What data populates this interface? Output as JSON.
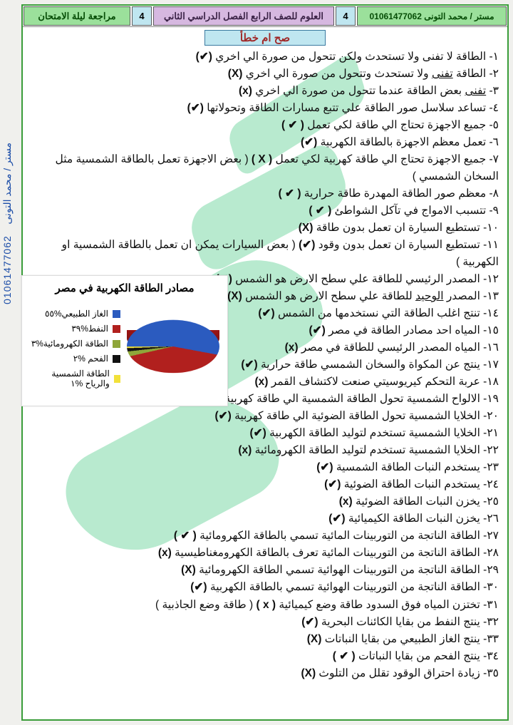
{
  "side": {
    "teacher": "مستر / محمد التونى",
    "phone": "01061477062"
  },
  "header": {
    "right_label": "مراجعة ليلة الامتحان",
    "num_right": "4",
    "center_label": "العلوم للصف الرابع الفصل الدراسي الثاني",
    "num_left": "4",
    "left_label": "مستر / محمد التونى   01061477062"
  },
  "tf_title": "صح ام خطأ",
  "items": [
    {
      "n": "١",
      "text": "- الطاقة لا تفنى ولا تستحدث ولكن تتحول من صورة الي اخري",
      "mark": "(✔)"
    },
    {
      "n": "٢",
      "pre": "- الطاقة ",
      "u": "تفنى",
      "post": " ولا تستحدث وتتحول من صورة الي اخري",
      "mark": "(X)"
    },
    {
      "n": "٣",
      "pre": "- ",
      "u": "تفنى",
      "post": " بعض الطاقة عندما تتحول من صورة الي اخري",
      "mark": "(x)"
    },
    {
      "n": "٤",
      "text": "- تساعد سلاسل صور الطاقة علي تتبع مسارات الطاقة وتحولاتها",
      "mark": "(✔)"
    },
    {
      "n": "٥",
      "text": "- جميع الاجهزة تحتاج الي طاقة لكي تعمل",
      "mark": "(  ✔  )"
    },
    {
      "n": "٦",
      "text": "- تعمل معظم الاجهزة بالطاقة الكهربية",
      "mark": "(✔)"
    },
    {
      "n": "٧",
      "text": "- جميع الاجهزة تحتاج الي طاقة كهربية لكي تعمل",
      "mark": "(  X  )",
      "note": "( بعض الاجهزة تعمل بالطاقة الشمسية مثل السخان الشمسي )"
    },
    {
      "n": "٨",
      "text": "- معظم صور الطاقة المهدرة طاقة حرارية",
      "mark": "(  ✔  )"
    },
    {
      "n": "٩",
      "text": "- تتسبب الامواج في تآكل الشواطئ",
      "mark": "(  ✔  )"
    },
    {
      "n": "١٠",
      "text": "- تستطيع السيارة ان تعمل بدون طاقة",
      "mark": "(X)"
    },
    {
      "n": "١١",
      "text": "- تستطيع السيارة ان تعمل بدون وقود",
      "mark": "(✔)",
      "note": "( بعض السيارات يمكن ان تعمل بالطاقة الشمسية او الكهربية )"
    },
    {
      "n": "١٢",
      "text": "- المصدر الرئيسي للطاقة علي سطح الارض هو الشمس",
      "mark": "(✔)"
    },
    {
      "n": "١٣",
      "pre": "- المصدر ",
      "u": "الوحيد",
      "post": " للطاقة علي سطح الارض هو الشمس",
      "mark": "(X)"
    },
    {
      "n": "١٤",
      "text": "- تنتج اغلب الطاقة التي نستخدمها من الشمس",
      "mark": "(✔)"
    },
    {
      "n": "١٥",
      "text": "- المياه احد مصادر الطاقة في مصر",
      "mark": "(✔)"
    },
    {
      "n": "١٦",
      "text": "- المياه المصدر الرئيسي للطاقة في مصر",
      "mark": "(x)"
    },
    {
      "n": "١٧",
      "text": "- ينتج عن المكواة والسخان الشمسي طاقة حرارية",
      "mark": "(✔)"
    },
    {
      "n": "١٨",
      "text": "- عربة التحكم كيريوسيتي صنعت لاكتشاف القمر",
      "mark": "(x)"
    },
    {
      "n": "١٩",
      "text": "- الالواح الشمسية تحول الطاقة الشمسية الي طاقة كهربية",
      "mark": "(✔)"
    },
    {
      "n": "٢٠",
      "text": "- الخلايا الشمسية تحول الطاقة الضوئية الي طاقة كهربية",
      "mark": "(✔)"
    },
    {
      "n": "٢١",
      "text": "- الخلايا الشمسية تستخدم لتوليد الطاقة الكهربية",
      "mark": "(✔)"
    },
    {
      "n": "٢٢",
      "text": "- الخلايا الشمسية تستخدم لتوليد الطاقة الكهرومائية",
      "mark": "(x)"
    },
    {
      "n": "٢٣",
      "text": "- يستخدم النبات الطاقة الشمسية",
      "mark": "(✔)"
    },
    {
      "n": "٢٤",
      "text": "- يستخدم النبات الطاقة الضوئية",
      "mark": "(✔)"
    },
    {
      "n": "٢٥",
      "text": "- يخزن النبات الطاقة الضوئية",
      "mark": "(x)"
    },
    {
      "n": "٢٦",
      "text": "- يخزن النبات الطاقة الكيميائية",
      "mark": "(✔)"
    },
    {
      "n": "٢٧",
      "text": "- الطاقة الناتجة من التوربينات المائية تسمي بالطاقة الكهرومائية",
      "mark": "(  ✔  )"
    },
    {
      "n": "٢٨",
      "text": "- الطاقة الناتجة من التوربينات المائية تعرف بالطاقة الكهرومغناطيسية",
      "mark": "(x)"
    },
    {
      "n": "٢٩",
      "text": "- الطاقة الناتجة من التوربينات الهوائية تسمي الطاقة الكهرومائية",
      "mark": "(X)"
    },
    {
      "n": "٣٠",
      "text": "- الطاقة الناتجة من التوربينات الهوائية تسمي بالطاقة الكهربية",
      "mark": "(✔)"
    },
    {
      "n": "٣١",
      "text": "- تختزن المياه فوق السدود طاقة وضع كيميائية",
      "mark": "(  x  )",
      "note": "( طاقة وضع الجاذبية )"
    },
    {
      "n": "٣٢",
      "text": "- ينتج النفط من بقايا الكائنات البحرية",
      "mark": "(✔)"
    },
    {
      "n": "٣٣",
      "text": "- ينتج الغاز الطبيعي من بقايا النباتات",
      "mark": "(X)"
    },
    {
      "n": "٣٤",
      "text": "- ينتج الفحم من بقايا النباتات",
      "mark": "(  ✔  )"
    },
    {
      "n": "٣٥",
      "text": "- زيادة احتراق الوقود تقلل من التلوث",
      "mark": "(X)"
    }
  ],
  "chart": {
    "title": "مصادر الطاقة الكهربية في مصر",
    "slices": [
      {
        "label": "الغاز الطبيعي%٥٥",
        "value": 55,
        "color": "#2b5bbf"
      },
      {
        "label": "النفط%٣٩",
        "value": 39,
        "color": "#b1201e"
      },
      {
        "label": "الطاقة الكهرومائية%٣",
        "value": 3,
        "color": "#8fa63a"
      },
      {
        "label": "الفحم %٢",
        "value": 2,
        "color": "#111111"
      },
      {
        "label": "الطاقة الشمسية والرياح %١",
        "value": 1,
        "color": "#f2e13a"
      }
    ],
    "bg": "#ffffff"
  },
  "colors": {
    "green": "#3a9d3a",
    "mint": "#7dd8a8"
  }
}
